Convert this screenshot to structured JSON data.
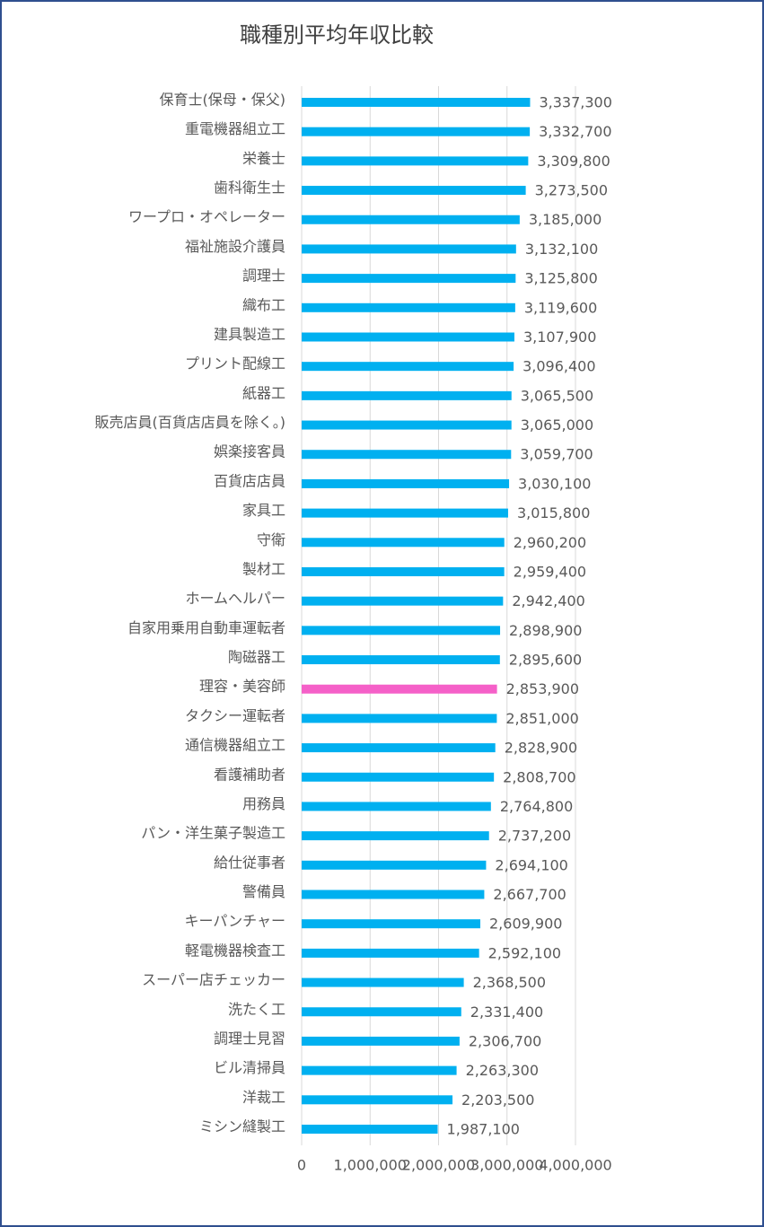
{
  "chart_data": {
    "type": "barh",
    "title": "職種別平均年収比較",
    "categories": [
      "保育士(保母・保父)",
      "重電機器組立工",
      "栄養士",
      "歯科衛生士",
      "ワープロ・オペレーター",
      "福祉施設介護員",
      "調理士",
      "織布工",
      "建具製造工",
      "プリント配線工",
      "紙器工",
      "販売店員(百貨店店員を除く。)",
      "娯楽接客員",
      "百貨店店員",
      "家具工",
      "守衛",
      "製材工",
      "ホームヘルパー",
      "自家用乗用自動車運転者",
      "陶磁器工",
      "理容・美容師",
      "タクシー運転者",
      "通信機器組立工",
      "看護補助者",
      "用務員",
      "パン・洋生菓子製造工",
      "給仕従事者",
      "警備員",
      "キーパンチャー",
      "軽電機器検査工",
      "スーパー店チェッカー",
      "洗たく工",
      "調理士見習",
      "ビル清掃員",
      "洋裁工",
      "ミシン縫製工"
    ],
    "values": [
      3337300,
      3332700,
      3309800,
      3273500,
      3185000,
      3132100,
      3125800,
      3119600,
      3107900,
      3096400,
      3065500,
      3065000,
      3059700,
      3030100,
      3015800,
      2960200,
      2959400,
      2942400,
      2898900,
      2895600,
      2853900,
      2851000,
      2828900,
      2808700,
      2764800,
      2737200,
      2694100,
      2667700,
      2609900,
      2592100,
      2368500,
      2331400,
      2306700,
      2263300,
      2203500,
      1987100
    ],
    "value_labels": [
      "3,337,300",
      "3,332,700",
      "3,309,800",
      "3,273,500",
      "3,185,000",
      "3,132,100",
      "3,125,800",
      "3,119,600",
      "3,107,900",
      "3,096,400",
      "3,065,500",
      "3,065,000",
      "3,059,700",
      "3,030,100",
      "3,015,800",
      "2,960,200",
      "2,959,400",
      "2,942,400",
      "2,898,900",
      "2,895,600",
      "2,853,900",
      "2,851,000",
      "2,828,900",
      "2,808,700",
      "2,764,800",
      "2,737,200",
      "2,694,100",
      "2,667,700",
      "2,609,900",
      "2,592,100",
      "2,368,500",
      "2,331,400",
      "2,306,700",
      "2,263,300",
      "2,203,500",
      "1,987,100"
    ],
    "colors": [
      "#00b0f0",
      "#00b0f0",
      "#00b0f0",
      "#00b0f0",
      "#00b0f0",
      "#00b0f0",
      "#00b0f0",
      "#00b0f0",
      "#00b0f0",
      "#00b0f0",
      "#00b0f0",
      "#00b0f0",
      "#00b0f0",
      "#00b0f0",
      "#00b0f0",
      "#00b0f0",
      "#00b0f0",
      "#00b0f0",
      "#00b0f0",
      "#00b0f0",
      "#f560c8",
      "#00b0f0",
      "#00b0f0",
      "#00b0f0",
      "#00b0f0",
      "#00b0f0",
      "#00b0f0",
      "#00b0f0",
      "#00b0f0",
      "#00b0f0",
      "#00b0f0",
      "#00b0f0",
      "#00b0f0",
      "#00b0f0",
      "#00b0f0",
      "#00b0f0"
    ],
    "xlim": [
      0,
      4000000
    ],
    "xticks": [
      0,
      {
        "value": 1000000,
        "label": "1,000,000"
      },
      {
        "value": 2000000,
        "label": "2,000,000"
      },
      {
        "value": 3000000,
        "label": "3,000,000"
      },
      {
        "value": 4000000,
        "label": "4,000,000"
      }
    ],
    "grid": true
  }
}
